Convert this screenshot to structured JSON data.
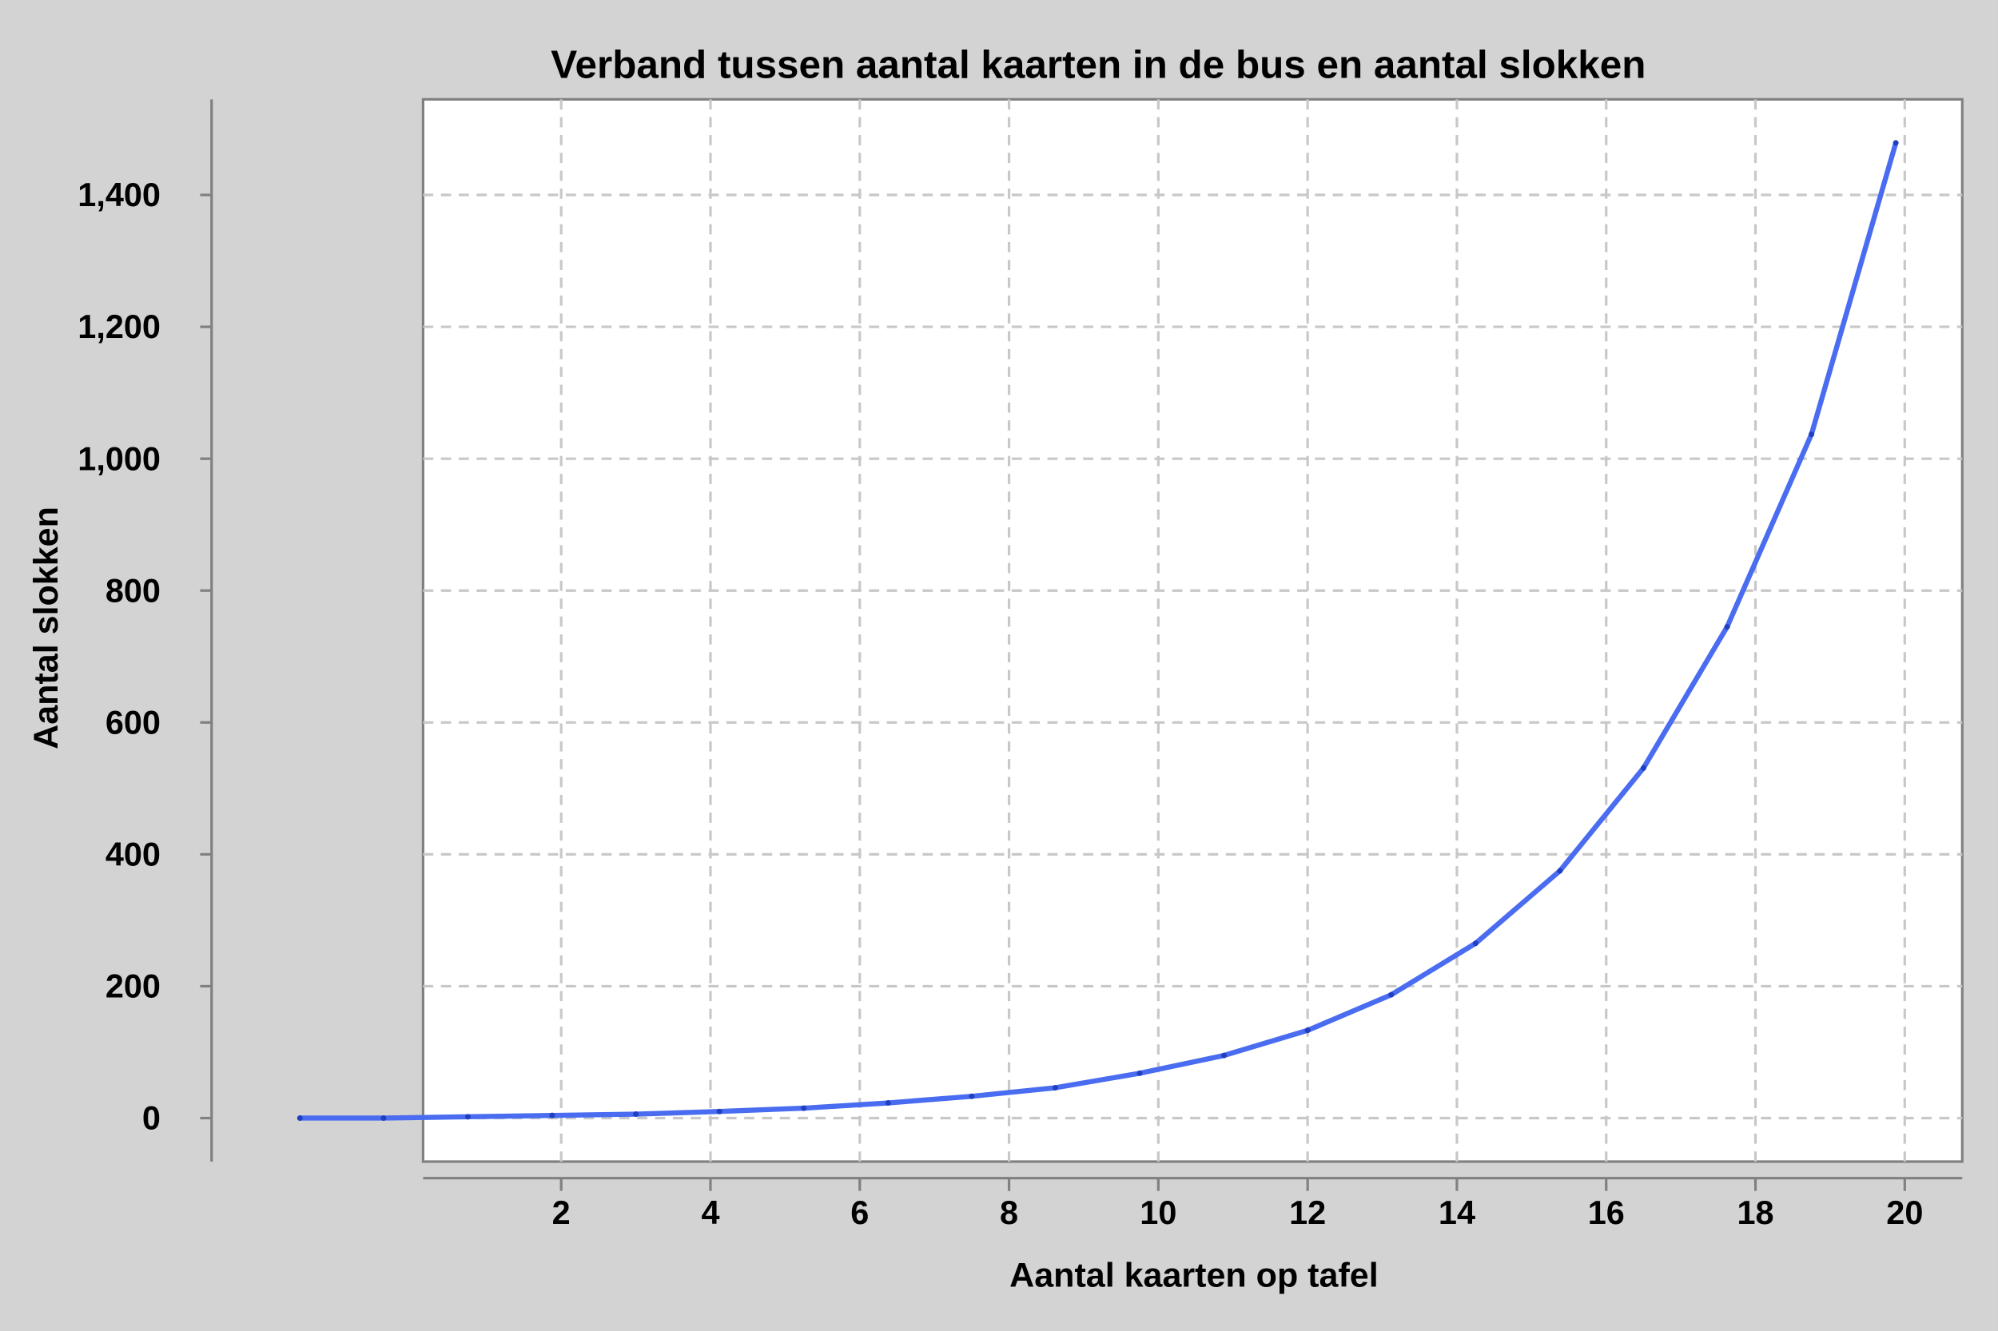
{
  "chart_data": {
    "type": "line",
    "title": "Verband tussen aantal kaarten in de bus en aantal slokken",
    "x_label": "Aantal kaarten op tafel",
    "y_label": "Aantal slokken",
    "x": [
      -1.5,
      -0.38,
      0.75,
      1.88,
      3.0,
      4.12,
      5.25,
      6.38,
      7.5,
      8.62,
      9.75,
      10.88,
      12.0,
      13.12,
      14.25,
      15.38,
      16.5,
      17.62,
      18.75,
      19.88
    ],
    "series": [
      {
        "color": "#4a6cf0",
        "values": [
          0,
          0,
          2,
          4,
          6,
          10,
          15,
          23,
          33,
          46,
          68,
          95,
          133,
          187,
          265,
          375,
          531,
          745,
          1037,
          1479
        ]
      }
    ],
    "xlim": [
      0.15,
      20.77
    ],
    "xticks": [
      2,
      4,
      6,
      8,
      10,
      12,
      14,
      16,
      18,
      20
    ],
    "ylim": [
      -66,
      1545
    ],
    "yticks": [
      0,
      200,
      400,
      600,
      800,
      {
        "value": 1000,
        "label": "1,000"
      },
      {
        "value": 1200,
        "label": "1,200"
      },
      {
        "value": 1400,
        "label": "1,400"
      }
    ],
    "grid": true
  }
}
